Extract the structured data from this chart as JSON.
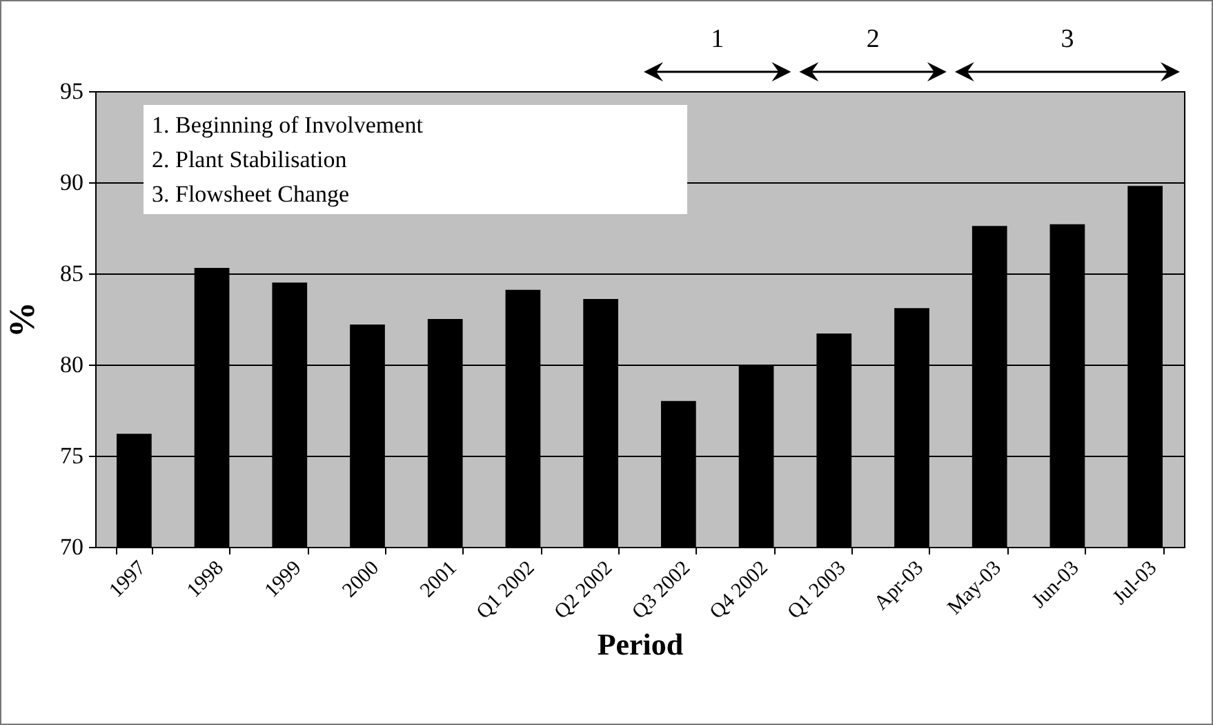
{
  "chart_data": {
    "type": "bar",
    "xlabel": "Period",
    "ylabel": "%",
    "categories": [
      "1997",
      "1998",
      "1999",
      "2000",
      "2001",
      "Q1 2002",
      "Q2 2002",
      "Q3 2002",
      "Q4 2002",
      "Q1 2003",
      "Apr-03",
      "May-03",
      "Jun-03",
      "Jul-03"
    ],
    "values": [
      76.2,
      85.3,
      84.5,
      82.2,
      82.5,
      84.1,
      83.6,
      78.0,
      80.0,
      81.7,
      83.1,
      87.6,
      87.7,
      89.8
    ],
    "color": "#000000",
    "ylim": [
      70,
      95
    ],
    "yticks": [
      70,
      75,
      80,
      85,
      90,
      95
    ],
    "grid": "y",
    "annotations": [
      "1. Beginning of Involvement",
      "2. Plant Stabilisation",
      "3. Flowsheet Change",
      "1",
      "2",
      "3"
    ]
  }
}
